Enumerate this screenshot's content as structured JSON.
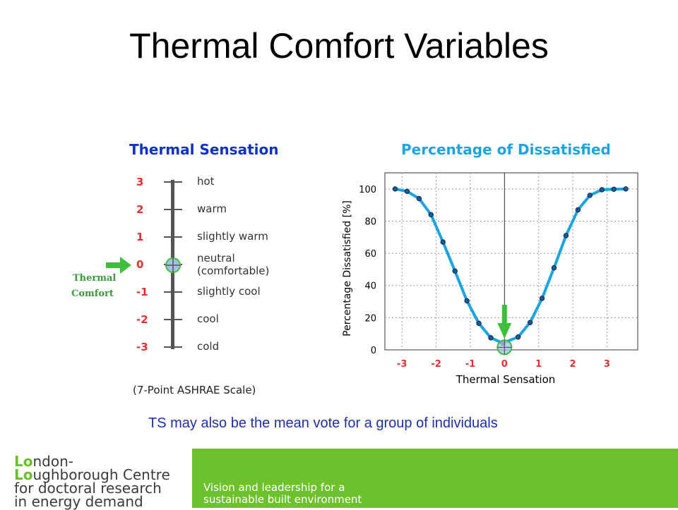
{
  "slide": {
    "title": "Thermal Comfort Variables",
    "note": "TS may also be the mean vote for a  group of individuals"
  },
  "scale_panel": {
    "title": "Thermal Sensation",
    "subtitle": "(7-Point ASHRAE Scale)",
    "arrow_label_1": "Thermal",
    "arrow_label_2": "Comfort",
    "levels": [
      {
        "value": "3",
        "label": "hot"
      },
      {
        "value": "2",
        "label": "warm"
      },
      {
        "value": "1",
        "label": "slightly warm"
      },
      {
        "value": "0",
        "label": "neutral",
        "label2": "(comfortable)"
      },
      {
        "value": "-1",
        "label": "slightly cool"
      },
      {
        "value": "-2",
        "label": "cool"
      },
      {
        "value": "-3",
        "label": "cold"
      }
    ],
    "colors": {
      "number": "#e03030",
      "title": "#1030c8",
      "bar": "#555555",
      "arrow": "#3dbf3d",
      "arrow_label": "#3a9a3a"
    }
  },
  "chart_data": {
    "type": "line",
    "title": "Percentage of Dissatisfied",
    "xlabel": "Thermal Sensation",
    "ylabel": "Percentage Dissatisfied [%]",
    "xlim": [
      -3.5,
      3.9
    ],
    "ylim": [
      0,
      110
    ],
    "x_ticks": [
      "-3",
      "-2",
      "-1",
      "0",
      "1",
      "2",
      "3"
    ],
    "y_ticks": [
      "0",
      "20",
      "40",
      "60",
      "80",
      "100"
    ],
    "grid": true,
    "series": [
      {
        "x": [
          -3.2,
          -2.85,
          -2.5,
          -2.15,
          -1.8,
          -1.45,
          -1.1,
          -0.75,
          -0.4,
          -0.05,
          0.4,
          0.75,
          1.1,
          1.45,
          1.8,
          2.15,
          2.5,
          2.85,
          3.2,
          3.55
        ],
        "y": [
          100,
          98.5,
          94,
          84,
          67,
          49,
          30.5,
          16.5,
          7.5,
          4.2,
          8,
          17,
          32,
          51,
          71,
          87,
          96,
          99.5,
          99.8,
          100
        ],
        "color": "#1aa5e0"
      }
    ],
    "highlight_x": 0,
    "highlight_y": 4.2
  },
  "logo": {
    "line1": "London-",
    "line2": "Loughborough Centre",
    "line3": "for doctoral research",
    "line4": "in energy demand"
  },
  "tagline": {
    "line1": "Vision and leadership for a",
    "line2": "sustainable built environment"
  }
}
